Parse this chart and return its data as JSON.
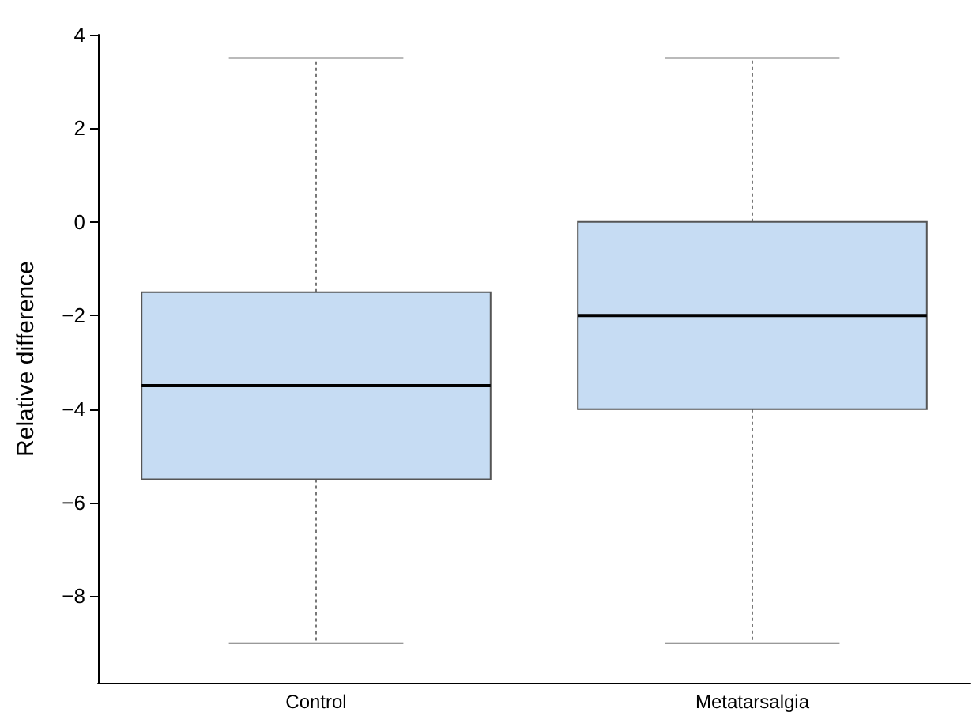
{
  "chart_data": {
    "type": "box",
    "ylabel": "Relative difference",
    "categories": [
      "Control",
      "Metatarsalgia"
    ],
    "color": "#c6dcf3",
    "boxes": [
      {
        "low": -9,
        "q1": -5.5,
        "median": -3.5,
        "q3": -1.5,
        "high": 3.5
      },
      {
        "low": -9,
        "q1": -4,
        "median": -2,
        "q3": 0,
        "high": 3.5
      }
    ],
    "ylim": [
      -9.85,
      4
    ],
    "yticks": [
      {
        "value": -8,
        "label": "−8"
      },
      {
        "value": -6,
        "label": "−6"
      },
      {
        "value": -4,
        "label": "−4"
      },
      {
        "value": -2,
        "label": "−2"
      },
      0,
      2,
      4
    ]
  }
}
